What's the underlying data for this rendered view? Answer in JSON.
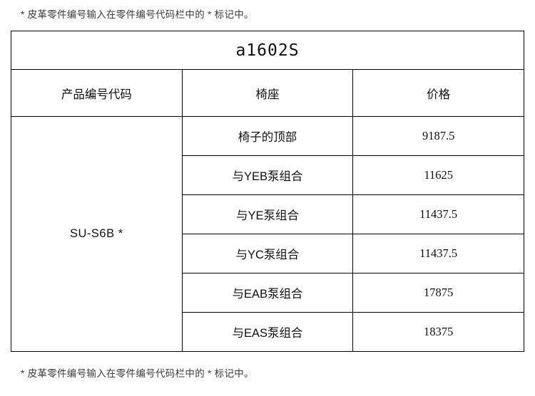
{
  "notes": {
    "top": "* 皮革零件编号输入在零件编号代码栏中的 * 标记中。",
    "bottom": "* 皮革零件编号输入在零件编号代码栏中的 * 标记中。"
  },
  "table": {
    "title": "a1602S",
    "columns": [
      "产品编号代码",
      "椅座",
      "价格"
    ],
    "product_code": "SU-S6B *",
    "rows": [
      {
        "seat": "椅子的顶部",
        "price": "9187.5"
      },
      {
        "seat": "与YEB泵组合",
        "price": "11625"
      },
      {
        "seat": "与YE泵组合",
        "price": "11437.5"
      },
      {
        "seat": "与YC泵组合",
        "price": "11437.5"
      },
      {
        "seat": "与EAB泵组合",
        "price": "17875"
      },
      {
        "seat": "与EAS泵组合",
        "price": "18375"
      }
    ]
  },
  "colors": {
    "background": "#ffffff",
    "border": "#000000",
    "text": "#111111",
    "note_text": "#3c3c3c"
  }
}
